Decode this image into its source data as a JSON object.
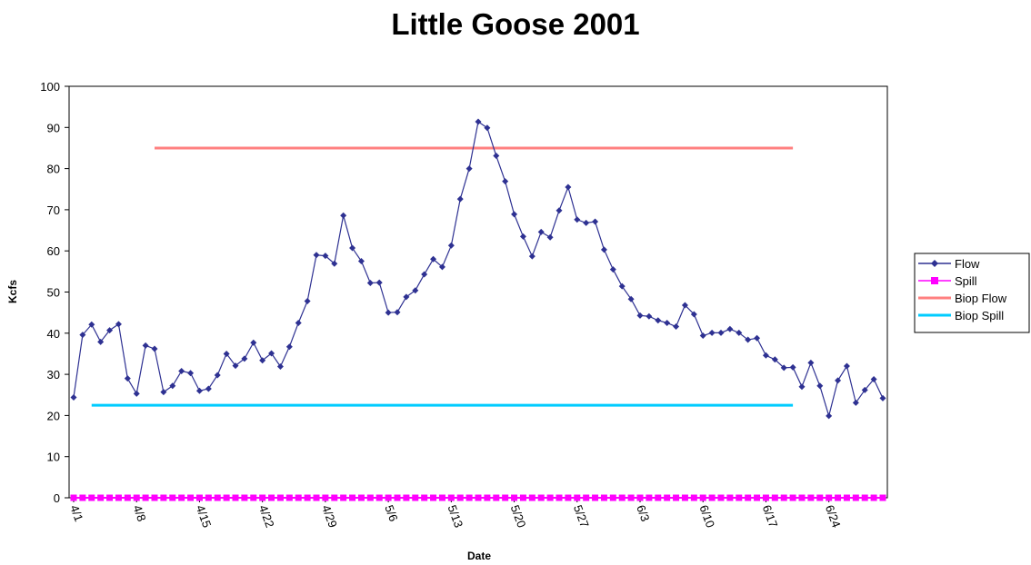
{
  "chart_data": {
    "type": "line",
    "title": "Little Goose 2001",
    "xlabel": "Date",
    "ylabel": "Kcfs",
    "ylim": [
      0,
      100
    ],
    "yticks": [
      0,
      10,
      20,
      30,
      40,
      50,
      60,
      70,
      80,
      90,
      100
    ],
    "x_start": "4/1",
    "x_end": "6/30",
    "xtick_labels": [
      "4/1",
      "4/8",
      "4/15",
      "4/22",
      "4/29",
      "5/6",
      "5/13",
      "5/20",
      "5/27",
      "6/3",
      "6/10",
      "6/17",
      "6/24"
    ],
    "grid": false,
    "legend_position": "right",
    "series": [
      {
        "name": "Flow",
        "color": "#2e3192",
        "marker": "diamond",
        "values": [
          24.4,
          39.6,
          42.1,
          37.9,
          40.7,
          42.2,
          29.0,
          25.3,
          37.0,
          36.2,
          25.7,
          27.2,
          30.8,
          30.3,
          26.0,
          26.5,
          29.8,
          35.0,
          32.1,
          33.8,
          37.7,
          33.4,
          35.1,
          31.9,
          36.7,
          42.5,
          47.8,
          59.0,
          58.8,
          56.9,
          68.6,
          60.7,
          57.5,
          52.2,
          52.3,
          45.0,
          45.1,
          48.8,
          50.4,
          54.3,
          58.0,
          56.1,
          61.3,
          72.6,
          80.0,
          91.4,
          89.9,
          83.1,
          76.9,
          68.9,
          63.5,
          58.7,
          64.6,
          63.3,
          69.8,
          75.5,
          67.6,
          66.8,
          67.1,
          60.3,
          55.5,
          51.4,
          48.3,
          44.3,
          44.1,
          43.1,
          42.5,
          41.6,
          46.8,
          44.6,
          39.4,
          40.1,
          40.1,
          41.0,
          40.1,
          38.4,
          38.8,
          34.6,
          33.6,
          31.6,
          31.7,
          27.0,
          32.8,
          27.2,
          19.9,
          28.5,
          32.0,
          23.1,
          26.2,
          28.8,
          24.2
        ]
      },
      {
        "name": "Spill",
        "color": "#ff00ff",
        "marker": "square",
        "values": [
          0,
          0,
          0,
          0,
          0,
          0,
          0,
          0,
          0,
          0,
          0,
          0,
          0,
          0,
          0,
          0,
          0,
          0,
          0,
          0,
          0,
          0,
          0,
          0,
          0,
          0,
          0,
          0,
          0,
          0,
          0,
          0,
          0,
          0,
          0,
          0,
          0,
          0,
          0,
          0,
          0,
          0,
          0,
          0,
          0,
          0,
          0,
          0,
          0,
          0,
          0,
          0,
          0,
          0,
          0,
          0,
          0,
          0,
          0,
          0,
          0,
          0,
          0,
          0,
          0,
          0,
          0,
          0,
          0,
          0,
          0,
          0,
          0,
          0,
          0,
          0,
          0,
          0,
          0,
          0,
          0,
          0,
          0,
          0,
          0,
          0,
          0,
          0,
          0,
          0,
          0
        ]
      },
      {
        "name": "Biop Flow",
        "color": "#ff8080",
        "marker": "none",
        "x_range": [
          "4/10",
          "6/20"
        ],
        "value": 85
      },
      {
        "name": "Biop Spill",
        "color": "#00ccff",
        "marker": "none",
        "x_range": [
          "4/3",
          "6/20"
        ],
        "value": 22.5
      }
    ]
  }
}
